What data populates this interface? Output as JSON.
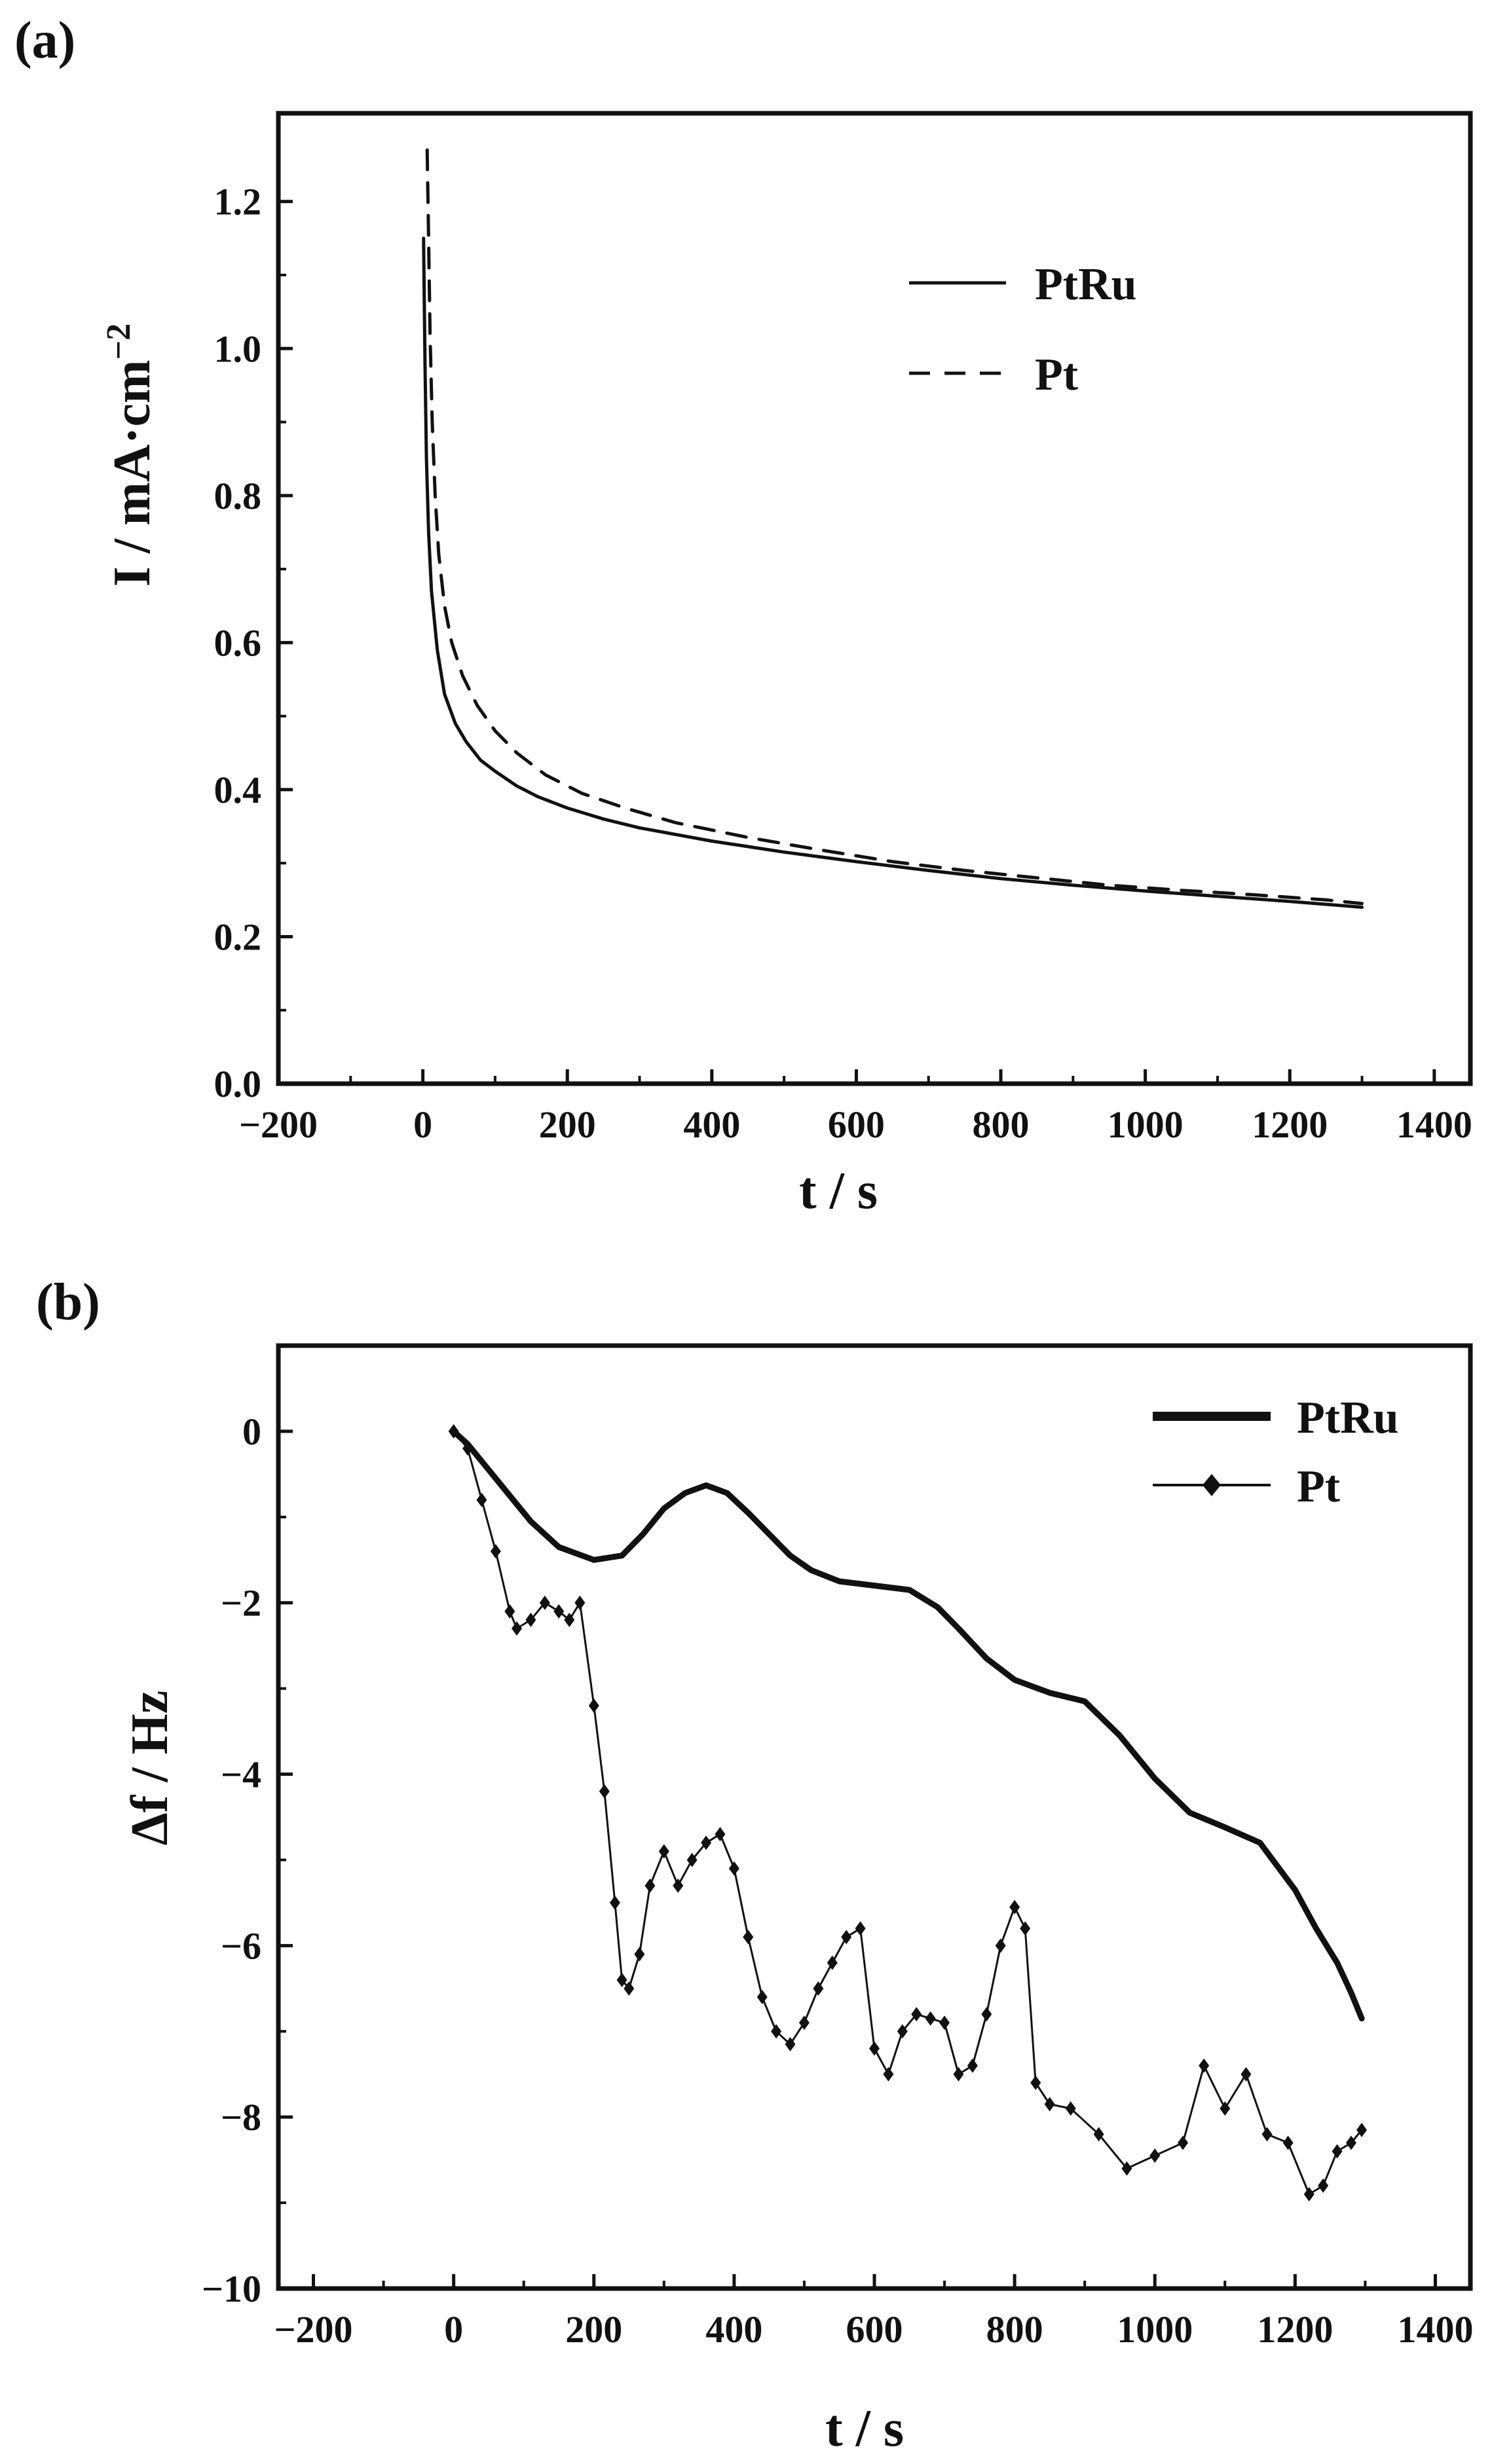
{
  "chart_data": [
    {
      "panel_label": "(a)",
      "type": "line",
      "xlabel": "t / s",
      "ylabel_main": "I / mA·cm",
      "ylabel_sup": "−2",
      "xlim": [
        -200,
        1450
      ],
      "ylim": [
        0,
        1.32
      ],
      "xticks": [
        -200,
        0,
        200,
        400,
        600,
        800,
        1000,
        1200,
        1400
      ],
      "xtick_labels": [
        "−200",
        "0",
        "200",
        "400",
        "600",
        "800",
        "1000",
        "1200",
        "1400"
      ],
      "yticks": [
        0.0,
        0.2,
        0.4,
        0.6,
        0.8,
        1.0,
        1.2
      ],
      "ytick_labels": [
        "0.0",
        "0.2",
        "0.4",
        "0.6",
        "0.8",
        "1.0",
        "1.2"
      ],
      "legend": "top-right",
      "series": [
        {
          "name": "PtRu",
          "style": "solid",
          "x": [
            1,
            3,
            5,
            8,
            12,
            20,
            30,
            45,
            60,
            80,
            100,
            130,
            160,
            200,
            250,
            300,
            400,
            500,
            600,
            700,
            800,
            900,
            1000,
            1100,
            1200,
            1300
          ],
          "y": [
            1.15,
            0.98,
            0.85,
            0.75,
            0.67,
            0.59,
            0.53,
            0.49,
            0.465,
            0.44,
            0.425,
            0.405,
            0.39,
            0.375,
            0.36,
            0.348,
            0.33,
            0.315,
            0.302,
            0.29,
            0.279,
            0.27,
            0.262,
            0.255,
            0.248,
            0.24
          ]
        },
        {
          "name": "Pt",
          "style": "dashed",
          "x": [
            6,
            8,
            10,
            13,
            17,
            22,
            30,
            40,
            55,
            75,
            100,
            130,
            170,
            220,
            280,
            350,
            450,
            550,
            650,
            750,
            850,
            950,
            1050,
            1150,
            1250,
            1300
          ],
          "y": [
            1.27,
            1.15,
            1.02,
            0.9,
            0.8,
            0.72,
            0.65,
            0.6,
            0.555,
            0.515,
            0.48,
            0.45,
            0.42,
            0.395,
            0.375,
            0.355,
            0.335,
            0.318,
            0.302,
            0.29,
            0.28,
            0.27,
            0.263,
            0.257,
            0.25,
            0.245
          ]
        }
      ]
    },
    {
      "panel_label": "(b)",
      "type": "line",
      "xlabel": "t / s",
      "ylabel": "Δf / Hz",
      "xlim": [
        -250,
        1450
      ],
      "ylim": [
        -10,
        1
      ],
      "xticks": [
        -200,
        0,
        200,
        400,
        600,
        800,
        1000,
        1200,
        1400
      ],
      "xtick_labels": [
        "−200",
        "0",
        "200",
        "400",
        "600",
        "800",
        "1000",
        "1200",
        "1400"
      ],
      "yticks": [
        0,
        -2,
        -4,
        -6,
        -8,
        -10
      ],
      "ytick_labels": [
        "0",
        "−2",
        "−4",
        "−6",
        "−8",
        "−10"
      ],
      "legend": "top-right",
      "series": [
        {
          "name": "PtRu",
          "style": "thick-solid",
          "x": [
            0,
            20,
            50,
            80,
            110,
            150,
            200,
            240,
            270,
            300,
            330,
            360,
            390,
            420,
            450,
            480,
            510,
            550,
            600,
            650,
            690,
            720,
            760,
            800,
            850,
            900,
            950,
            1000,
            1050,
            1100,
            1150,
            1200,
            1230,
            1260,
            1280,
            1295
          ],
          "y": [
            0,
            -0.15,
            -0.45,
            -0.75,
            -1.05,
            -1.35,
            -1.5,
            -1.45,
            -1.2,
            -0.9,
            -0.72,
            -0.63,
            -0.72,
            -0.95,
            -1.2,
            -1.45,
            -1.62,
            -1.75,
            -1.8,
            -1.85,
            -2.05,
            -2.3,
            -2.65,
            -2.9,
            -3.05,
            -3.15,
            -3.55,
            -4.05,
            -4.45,
            -4.62,
            -4.8,
            -5.35,
            -5.8,
            -6.2,
            -6.55,
            -6.85
          ]
        },
        {
          "name": "Pt",
          "style": "thin-solid-diamond",
          "x": [
            0,
            20,
            40,
            60,
            80,
            90,
            110,
            130,
            150,
            165,
            180,
            200,
            215,
            230,
            240,
            250,
            265,
            280,
            300,
            320,
            340,
            360,
            380,
            400,
            420,
            440,
            460,
            480,
            500,
            520,
            540,
            560,
            580,
            600,
            620,
            640,
            660,
            680,
            700,
            720,
            740,
            760,
            780,
            800,
            815,
            830,
            850,
            880,
            920,
            960,
            1000,
            1040,
            1070,
            1100,
            1130,
            1160,
            1190,
            1220,
            1240,
            1260,
            1280,
            1295
          ],
          "y": [
            0,
            -0.2,
            -0.8,
            -1.4,
            -2.1,
            -2.3,
            -2.2,
            -2.0,
            -2.1,
            -2.2,
            -2.0,
            -3.2,
            -4.2,
            -5.5,
            -6.4,
            -6.5,
            -6.1,
            -5.3,
            -4.9,
            -5.3,
            -5.0,
            -4.8,
            -4.7,
            -5.1,
            -5.9,
            -6.6,
            -7.0,
            -7.15,
            -6.9,
            -6.5,
            -6.2,
            -5.9,
            -5.8,
            -7.2,
            -7.5,
            -7.0,
            -6.8,
            -6.85,
            -6.9,
            -7.5,
            -7.4,
            -6.8,
            -6.0,
            -5.55,
            -5.8,
            -7.6,
            -7.85,
            -7.9,
            -8.2,
            -8.6,
            -8.45,
            -8.3,
            -7.4,
            -7.9,
            -7.5,
            -8.2,
            -8.3,
            -8.9,
            -8.8,
            -8.4,
            -8.3,
            -8.15
          ]
        }
      ]
    }
  ]
}
